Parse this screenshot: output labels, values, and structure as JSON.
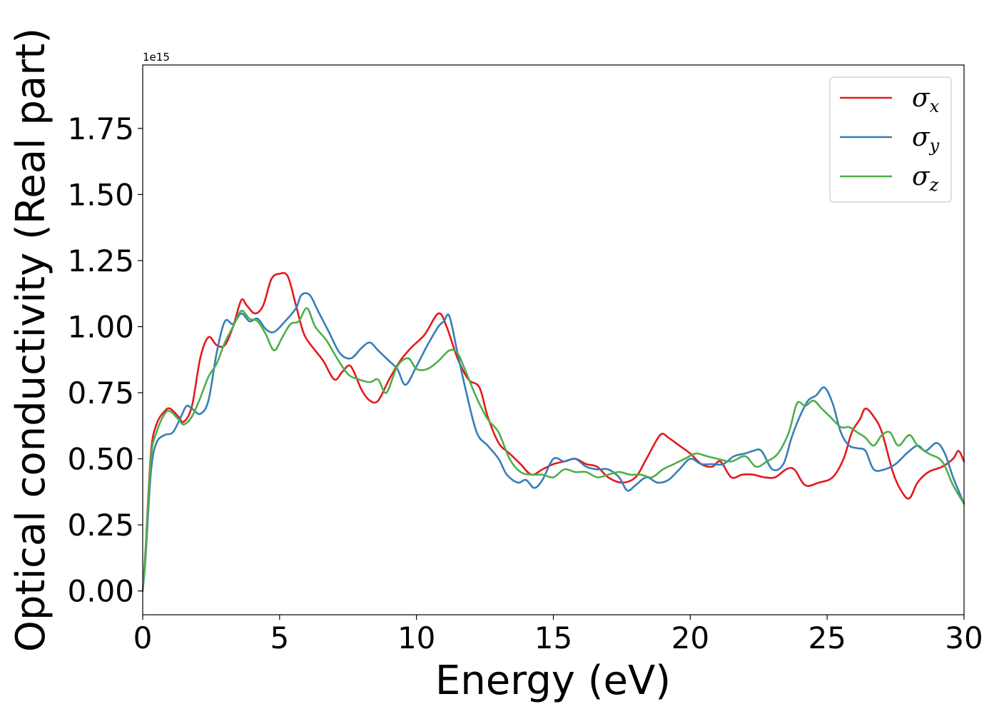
{
  "chart_data": {
    "type": "line",
    "title": "",
    "xlabel": "Energy (eV)",
    "ylabel": "Optical conductivity (Real part)",
    "y_offset_label": "1e15",
    "xlim": [
      0,
      30
    ],
    "ylim": [
      -0.09,
      1.99
    ],
    "xticks": [
      0,
      5,
      10,
      15,
      20,
      25,
      30
    ],
    "xtick_labels": [
      "0",
      "5",
      "10",
      "15",
      "20",
      "25",
      "30"
    ],
    "yticks": [
      0.0,
      0.25,
      0.5,
      0.75,
      1.0,
      1.25,
      1.5,
      1.75
    ],
    "ytick_labels": [
      "0.00",
      "0.25",
      "0.50",
      "0.75",
      "1.00",
      "1.25",
      "1.50",
      "1.75"
    ],
    "grid": false,
    "legend_position": "top-right",
    "series": [
      {
        "name": "σx",
        "symbol": "σ",
        "subscript": "x",
        "color": "#e41a1c",
        "points": [
          [
            0,
            0
          ],
          [
            0.1,
            0.15
          ],
          [
            0.3,
            0.52
          ],
          [
            0.5,
            0.63
          ],
          [
            0.8,
            0.68
          ],
          [
            1.0,
            0.69
          ],
          [
            1.3,
            0.66
          ],
          [
            1.5,
            0.64
          ],
          [
            1.8,
            0.7
          ],
          [
            2.1,
            0.88
          ],
          [
            2.4,
            0.96
          ],
          [
            2.7,
            0.93
          ],
          [
            3.0,
            0.93
          ],
          [
            3.3,
            1.0
          ],
          [
            3.6,
            1.1
          ],
          [
            3.8,
            1.08
          ],
          [
            4.1,
            1.05
          ],
          [
            4.4,
            1.08
          ],
          [
            4.7,
            1.18
          ],
          [
            5.0,
            1.2
          ],
          [
            5.3,
            1.19
          ],
          [
            5.6,
            1.08
          ],
          [
            5.9,
            0.97
          ],
          [
            6.3,
            0.91
          ],
          [
            6.6,
            0.87
          ],
          [
            7.0,
            0.8
          ],
          [
            7.3,
            0.83
          ],
          [
            7.6,
            0.85
          ],
          [
            8.0,
            0.76
          ],
          [
            8.3,
            0.72
          ],
          [
            8.6,
            0.72
          ],
          [
            9.0,
            0.8
          ],
          [
            9.4,
            0.87
          ],
          [
            9.8,
            0.92
          ],
          [
            10.3,
            0.97
          ],
          [
            10.8,
            1.05
          ],
          [
            11.1,
            1.0
          ],
          [
            11.5,
            0.88
          ],
          [
            11.9,
            0.8
          ],
          [
            12.3,
            0.77
          ],
          [
            12.6,
            0.66
          ],
          [
            13.0,
            0.56
          ],
          [
            13.4,
            0.52
          ],
          [
            13.8,
            0.48
          ],
          [
            14.2,
            0.44
          ],
          [
            14.6,
            0.46
          ],
          [
            15.0,
            0.48
          ],
          [
            15.4,
            0.49
          ],
          [
            15.8,
            0.5
          ],
          [
            16.2,
            0.48
          ],
          [
            16.6,
            0.47
          ],
          [
            17.0,
            0.43
          ],
          [
            17.5,
            0.41
          ],
          [
            18.0,
            0.43
          ],
          [
            18.4,
            0.5
          ],
          [
            18.9,
            0.59
          ],
          [
            19.2,
            0.58
          ],
          [
            19.6,
            0.55
          ],
          [
            20.0,
            0.52
          ],
          [
            20.4,
            0.48
          ],
          [
            20.8,
            0.47
          ],
          [
            21.1,
            0.49
          ],
          [
            21.5,
            0.43
          ],
          [
            21.9,
            0.44
          ],
          [
            22.3,
            0.44
          ],
          [
            22.7,
            0.43
          ],
          [
            23.1,
            0.43
          ],
          [
            23.5,
            0.46
          ],
          [
            23.8,
            0.46
          ],
          [
            24.2,
            0.4
          ],
          [
            24.7,
            0.41
          ],
          [
            25.2,
            0.43
          ],
          [
            25.6,
            0.5
          ],
          [
            25.9,
            0.6
          ],
          [
            26.2,
            0.65
          ],
          [
            26.4,
            0.69
          ],
          [
            26.7,
            0.66
          ],
          [
            27.0,
            0.6
          ],
          [
            27.4,
            0.45
          ],
          [
            27.7,
            0.38
          ],
          [
            28.0,
            0.35
          ],
          [
            28.3,
            0.41
          ],
          [
            28.7,
            0.45
          ],
          [
            29.2,
            0.47
          ],
          [
            29.6,
            0.5
          ],
          [
            29.8,
            0.53
          ],
          [
            30.0,
            0.49
          ]
        ]
      },
      {
        "name": "σy",
        "symbol": "σ",
        "subscript": "y",
        "color": "#377eb8",
        "points": [
          [
            0,
            0
          ],
          [
            0.1,
            0.12
          ],
          [
            0.3,
            0.45
          ],
          [
            0.5,
            0.56
          ],
          [
            0.8,
            0.59
          ],
          [
            1.1,
            0.6
          ],
          [
            1.4,
            0.66
          ],
          [
            1.6,
            0.7
          ],
          [
            1.8,
            0.69
          ],
          [
            2.1,
            0.67
          ],
          [
            2.4,
            0.72
          ],
          [
            2.7,
            0.9
          ],
          [
            3.0,
            1.02
          ],
          [
            3.3,
            1.01
          ],
          [
            3.6,
            1.05
          ],
          [
            3.9,
            1.02
          ],
          [
            4.2,
            1.03
          ],
          [
            4.5,
            0.99
          ],
          [
            4.8,
            0.98
          ],
          [
            5.2,
            1.02
          ],
          [
            5.6,
            1.07
          ],
          [
            5.8,
            1.12
          ],
          [
            6.1,
            1.12
          ],
          [
            6.4,
            1.06
          ],
          [
            6.8,
            0.98
          ],
          [
            7.2,
            0.9
          ],
          [
            7.6,
            0.88
          ],
          [
            8.0,
            0.92
          ],
          [
            8.3,
            0.94
          ],
          [
            8.6,
            0.91
          ],
          [
            9.0,
            0.87
          ],
          [
            9.3,
            0.84
          ],
          [
            9.6,
            0.78
          ],
          [
            10.0,
            0.85
          ],
          [
            10.4,
            0.93
          ],
          [
            10.8,
            1.0
          ],
          [
            11.0,
            1.02
          ],
          [
            11.2,
            1.04
          ],
          [
            11.5,
            0.9
          ],
          [
            11.8,
            0.76
          ],
          [
            12.2,
            0.6
          ],
          [
            12.6,
            0.55
          ],
          [
            13.0,
            0.5
          ],
          [
            13.3,
            0.44
          ],
          [
            13.7,
            0.41
          ],
          [
            14.0,
            0.42
          ],
          [
            14.3,
            0.39
          ],
          [
            14.6,
            0.42
          ],
          [
            15.0,
            0.5
          ],
          [
            15.4,
            0.49
          ],
          [
            15.8,
            0.5
          ],
          [
            16.2,
            0.47
          ],
          [
            16.6,
            0.46
          ],
          [
            17.0,
            0.46
          ],
          [
            17.4,
            0.43
          ],
          [
            17.7,
            0.38
          ],
          [
            18.0,
            0.4
          ],
          [
            18.4,
            0.43
          ],
          [
            18.8,
            0.41
          ],
          [
            19.2,
            0.42
          ],
          [
            19.6,
            0.46
          ],
          [
            20.0,
            0.5
          ],
          [
            20.4,
            0.48
          ],
          [
            20.8,
            0.48
          ],
          [
            21.2,
            0.48
          ],
          [
            21.6,
            0.51
          ],
          [
            22.0,
            0.52
          ],
          [
            22.3,
            0.53
          ],
          [
            22.6,
            0.53
          ],
          [
            23.0,
            0.46
          ],
          [
            23.4,
            0.48
          ],
          [
            23.7,
            0.58
          ],
          [
            24.0,
            0.66
          ],
          [
            24.3,
            0.72
          ],
          [
            24.6,
            0.74
          ],
          [
            24.9,
            0.77
          ],
          [
            25.2,
            0.71
          ],
          [
            25.5,
            0.6
          ],
          [
            25.8,
            0.55
          ],
          [
            26.1,
            0.54
          ],
          [
            26.4,
            0.53
          ],
          [
            26.7,
            0.46
          ],
          [
            27.1,
            0.46
          ],
          [
            27.5,
            0.48
          ],
          [
            27.9,
            0.52
          ],
          [
            28.3,
            0.55
          ],
          [
            28.6,
            0.53
          ],
          [
            29.0,
            0.56
          ],
          [
            29.3,
            0.52
          ],
          [
            29.6,
            0.43
          ],
          [
            30.0,
            0.33
          ]
        ]
      },
      {
        "name": "σz",
        "symbol": "σ",
        "subscript": "z",
        "color": "#4daf4a",
        "points": [
          [
            0,
            0
          ],
          [
            0.1,
            0.14
          ],
          [
            0.3,
            0.5
          ],
          [
            0.5,
            0.6
          ],
          [
            0.8,
            0.67
          ],
          [
            1.0,
            0.68
          ],
          [
            1.3,
            0.65
          ],
          [
            1.5,
            0.63
          ],
          [
            1.8,
            0.66
          ],
          [
            2.1,
            0.73
          ],
          [
            2.4,
            0.81
          ],
          [
            2.7,
            0.86
          ],
          [
            3.0,
            0.94
          ],
          [
            3.3,
            1.0
          ],
          [
            3.6,
            1.06
          ],
          [
            3.9,
            1.03
          ],
          [
            4.2,
            1.02
          ],
          [
            4.5,
            0.97
          ],
          [
            4.8,
            0.91
          ],
          [
            5.1,
            0.96
          ],
          [
            5.4,
            1.01
          ],
          [
            5.7,
            1.02
          ],
          [
            6.0,
            1.07
          ],
          [
            6.3,
            1.0
          ],
          [
            6.7,
            0.95
          ],
          [
            7.1,
            0.88
          ],
          [
            7.5,
            0.82
          ],
          [
            7.9,
            0.8
          ],
          [
            8.3,
            0.79
          ],
          [
            8.6,
            0.8
          ],
          [
            8.9,
            0.75
          ],
          [
            9.3,
            0.85
          ],
          [
            9.7,
            0.88
          ],
          [
            10.0,
            0.84
          ],
          [
            10.4,
            0.84
          ],
          [
            10.8,
            0.87
          ],
          [
            11.2,
            0.91
          ],
          [
            11.5,
            0.9
          ],
          [
            11.8,
            0.83
          ],
          [
            12.2,
            0.73
          ],
          [
            12.6,
            0.65
          ],
          [
            13.0,
            0.6
          ],
          [
            13.4,
            0.5
          ],
          [
            13.8,
            0.45
          ],
          [
            14.2,
            0.44
          ],
          [
            14.6,
            0.44
          ],
          [
            15.0,
            0.43
          ],
          [
            15.4,
            0.46
          ],
          [
            15.8,
            0.45
          ],
          [
            16.2,
            0.45
          ],
          [
            16.6,
            0.43
          ],
          [
            17.0,
            0.44
          ],
          [
            17.4,
            0.45
          ],
          [
            17.8,
            0.44
          ],
          [
            18.2,
            0.44
          ],
          [
            18.6,
            0.43
          ],
          [
            19.0,
            0.46
          ],
          [
            19.4,
            0.48
          ],
          [
            19.8,
            0.5
          ],
          [
            20.2,
            0.52
          ],
          [
            20.6,
            0.51
          ],
          [
            21.0,
            0.5
          ],
          [
            21.5,
            0.49
          ],
          [
            22.0,
            0.51
          ],
          [
            22.4,
            0.47
          ],
          [
            22.8,
            0.49
          ],
          [
            23.2,
            0.52
          ],
          [
            23.6,
            0.6
          ],
          [
            23.9,
            0.71
          ],
          [
            24.2,
            0.7
          ],
          [
            24.5,
            0.72
          ],
          [
            24.8,
            0.69
          ],
          [
            25.1,
            0.66
          ],
          [
            25.5,
            0.62
          ],
          [
            25.8,
            0.62
          ],
          [
            26.1,
            0.6
          ],
          [
            26.4,
            0.58
          ],
          [
            26.7,
            0.55
          ],
          [
            27.0,
            0.59
          ],
          [
            27.3,
            0.6
          ],
          [
            27.6,
            0.55
          ],
          [
            28.0,
            0.59
          ],
          [
            28.3,
            0.55
          ],
          [
            28.7,
            0.52
          ],
          [
            29.2,
            0.49
          ],
          [
            29.6,
            0.4
          ],
          [
            30.0,
            0.33
          ]
        ]
      }
    ]
  }
}
